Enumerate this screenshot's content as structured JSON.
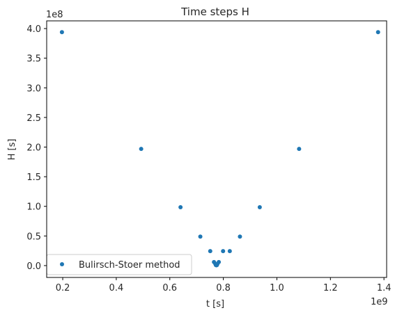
{
  "chart_data": {
    "type": "scatter",
    "title": "Time steps H",
    "xlabel": "t [s]",
    "ylabel": "H [s]",
    "x_offset_text": "1e9",
    "y_offset_text": "1e8",
    "xlim": [
      0.14,
      1.41
    ],
    "ylim": [
      -0.2,
      4.13
    ],
    "x_ticks": [
      {
        "value": 0.2,
        "label": "0.2"
      },
      {
        "value": 0.4,
        "label": "0.4"
      },
      {
        "value": 0.6,
        "label": "0.6"
      },
      {
        "value": 0.8,
        "label": "0.8"
      },
      {
        "value": 1.0,
        "label": "1.0"
      },
      {
        "value": 1.2,
        "label": "1.2"
      },
      {
        "value": 1.4,
        "label": "1.4"
      }
    ],
    "y_ticks": [
      {
        "value": 0.0,
        "label": "0.0"
      },
      {
        "value": 0.5,
        "label": "0.5"
      },
      {
        "value": 1.0,
        "label": "1.0"
      },
      {
        "value": 1.5,
        "label": "1.5"
      },
      {
        "value": 2.0,
        "label": "2.0"
      },
      {
        "value": 2.5,
        "label": "2.5"
      },
      {
        "value": 3.0,
        "label": "3.0"
      },
      {
        "value": 3.5,
        "label": "3.5"
      },
      {
        "value": 4.0,
        "label": "4.0"
      }
    ],
    "grid": false,
    "legend_position": "lower-left",
    "series": [
      {
        "name": "Bulirsch-Stoer method",
        "color": "#1f77b4",
        "marker": "circle",
        "points": [
          {
            "x": 0.197,
            "y": 3.94
          },
          {
            "x": 0.493,
            "y": 1.97
          },
          {
            "x": 0.64,
            "y": 0.985
          },
          {
            "x": 0.714,
            "y": 0.49
          },
          {
            "x": 0.751,
            "y": 0.245
          },
          {
            "x": 0.765,
            "y": 0.06
          },
          {
            "x": 0.77,
            "y": 0.03
          },
          {
            "x": 0.772,
            "y": 0.01
          },
          {
            "x": 0.774,
            "y": 0.005
          },
          {
            "x": 0.776,
            "y": 0.01
          },
          {
            "x": 0.778,
            "y": 0.03
          },
          {
            "x": 0.783,
            "y": 0.06
          },
          {
            "x": 0.799,
            "y": 0.245
          },
          {
            "x": 0.824,
            "y": 0.245
          },
          {
            "x": 0.862,
            "y": 0.49
          },
          {
            "x": 0.936,
            "y": 0.985
          },
          {
            "x": 1.083,
            "y": 1.97
          },
          {
            "x": 1.378,
            "y": 3.94
          }
        ]
      }
    ]
  }
}
